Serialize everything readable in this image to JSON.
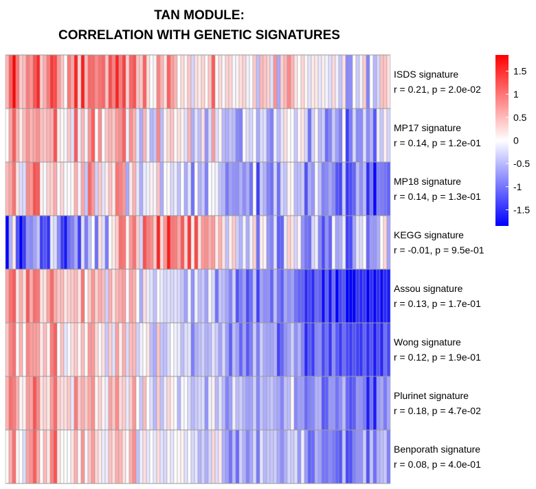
{
  "title": {
    "line1": "TAN MODULE:",
    "line2": "CORRELATION WITH GENETIC SIGNATURES"
  },
  "chart_data": {
    "type": "heatmap",
    "rows": [
      {
        "name": "ISDS signature",
        "stat": "r = 0.21, p = 2.0e-02"
      },
      {
        "name": "MP17 signature",
        "stat": "r = 0.14, p = 1.2e-01"
      },
      {
        "name": "MP18 signature",
        "stat": "r = 0.14, p = 1.3e-01"
      },
      {
        "name": "KEGG signature",
        "stat": "r = -0.01, p = 9.5e-01"
      },
      {
        "name": "Assou signature",
        "stat": "r = 0.13, p = 1.7e-01"
      },
      {
        "name": "Wong signature",
        "stat": "r = 0.12, p = 1.9e-01"
      },
      {
        "name": "Plurinet signature",
        "stat": "r = 0.18, p = 4.7e-02"
      },
      {
        "name": "Benporath signature",
        "stat": "r = 0.08, p = 4.0e-01"
      }
    ],
    "n_columns": 112,
    "color_scale": {
      "min": -1.5,
      "max": 1.5,
      "low": "#0000FF",
      "mid": "#FFFFFF",
      "high": "#FF0000",
      "ticks": [
        1.5,
        1,
        0.5,
        0,
        -0.5,
        -1,
        -1.5
      ],
      "tick_labels": [
        "1.5",
        "1",
        "0.5",
        "0",
        "-0.5",
        "-1",
        "-1.5"
      ]
    },
    "row_trends": [
      {
        "start": 0.9,
        "end": -0.2,
        "noise": 0.8
      },
      {
        "start": 0.6,
        "end": -0.6,
        "noise": 0.8
      },
      {
        "start": 0.5,
        "end": -0.9,
        "noise": 0.8
      },
      {
        "start": -0.7,
        "end": -0.5,
        "noise": 0.9,
        "bump": 1.4
      },
      {
        "start": 0.7,
        "end": -1.4,
        "noise": 0.6
      },
      {
        "start": 0.6,
        "end": -1.2,
        "noise": 0.6
      },
      {
        "start": 0.6,
        "end": -0.9,
        "noise": 0.6
      },
      {
        "start": 0.5,
        "end": -0.8,
        "noise": 0.7
      }
    ]
  }
}
